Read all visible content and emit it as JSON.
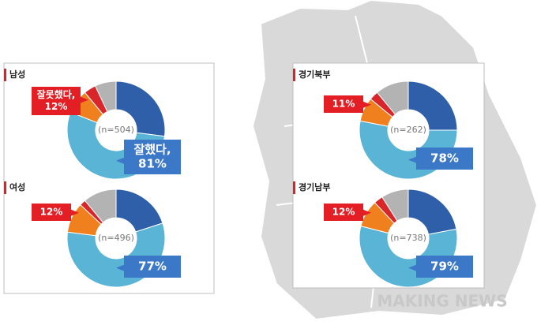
{
  "chart_data": [
    {
      "type": "pie",
      "title": "남성",
      "subtitle": "(n=504)",
      "values": [
        27,
        54,
        8,
        4,
        7
      ],
      "colors": [
        "#2e5fa8",
        "#5ab4d6",
        "#f07f1e",
        "#d9262a",
        "#b3b3b3"
      ],
      "good_label": [
        "잘했다,",
        "81%"
      ],
      "bad_label": [
        "잘못했다,",
        "12%"
      ]
    },
    {
      "type": "pie",
      "title": "여성",
      "subtitle": "(n=496)",
      "values": [
        20,
        57,
        10,
        2,
        11
      ],
      "colors": [
        "#2e5fa8",
        "#5ab4d6",
        "#f07f1e",
        "#d9262a",
        "#b3b3b3"
      ],
      "good_label": [
        "77%"
      ],
      "bad_label": [
        "12%"
      ]
    },
    {
      "type": "pie",
      "title": "경기북부",
      "subtitle": "(n=262)",
      "values": [
        25,
        53,
        8,
        3,
        11
      ],
      "colors": [
        "#2e5fa8",
        "#5ab4d6",
        "#f07f1e",
        "#d9262a",
        "#b3b3b3"
      ],
      "good_label": [
        "78%"
      ],
      "bad_label": [
        "11%"
      ]
    },
    {
      "type": "pie",
      "title": "경기남부",
      "subtitle": "(n=738)",
      "values": [
        22,
        57,
        9,
        3,
        9
      ],
      "colors": [
        "#2e5fa8",
        "#5ab4d6",
        "#f07f1e",
        "#d9262a",
        "#b3b3b3"
      ],
      "good_label": [
        "79%"
      ],
      "bad_label": [
        "12%"
      ]
    }
  ],
  "watermark": "MAKING NEWS"
}
